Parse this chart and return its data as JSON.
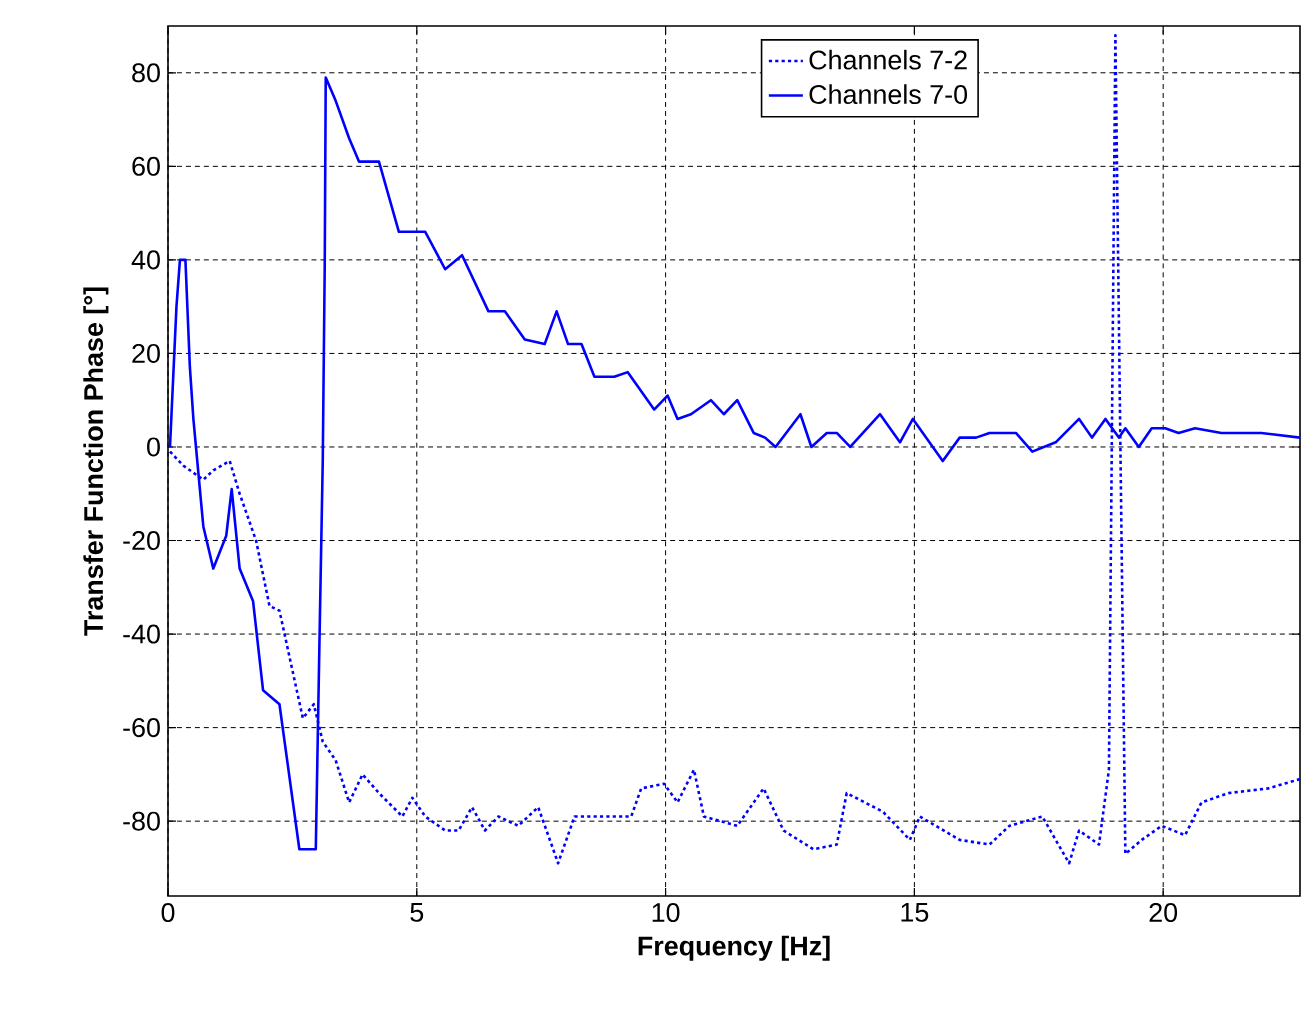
{
  "chart_data": {
    "type": "line",
    "xlabel": "Frequency [Hz]",
    "ylabel": "Transfer Function Phase [°]",
    "xlim": [
      0,
      22.75
    ],
    "ylim": [
      -96,
      90
    ],
    "xticks": [
      0,
      5,
      10,
      15,
      20
    ],
    "yticks": [
      -80,
      -60,
      -40,
      -20,
      0,
      20,
      40,
      60,
      80
    ],
    "grid": true,
    "legend": "top",
    "series": [
      {
        "name": "Channels 7-2",
        "color": "#0000ff",
        "line_style": "dotted",
        "x": [
          0.04,
          0.31,
          0.71,
          0.91,
          1.24,
          1.44,
          1.77,
          2.04,
          2.24,
          2.71,
          2.93,
          3.11,
          3.37,
          3.64,
          3.91,
          4.24,
          4.71,
          4.91,
          5.17,
          5.57,
          5.84,
          6.11,
          6.37,
          6.64,
          7.04,
          7.44,
          7.84,
          8.17,
          8.57,
          9.31,
          9.51,
          9.97,
          10.24,
          10.57,
          10.77,
          11.44,
          11.97,
          12.37,
          12.97,
          13.44,
          13.64,
          14.37,
          14.91,
          15.11,
          15.91,
          16.51,
          16.91,
          17.57,
          18.11,
          18.31,
          18.71,
          18.91,
          19.04,
          19.24,
          19.57,
          19.97,
          20.44,
          20.77,
          21.31,
          22.11,
          22.75
        ],
        "values": [
          -1,
          -4,
          -7,
          -5,
          -3,
          -10,
          -20,
          -34,
          -35,
          -58,
          -55,
          -63,
          -67,
          -76,
          -70,
          -74,
          -79,
          -75,
          -79,
          -82,
          -82,
          -77,
          -82,
          -79,
          -81,
          -77,
          -89,
          -79,
          -79,
          -79,
          -73,
          -72,
          -76,
          -69,
          -79,
          -81,
          -73,
          -82,
          -86,
          -85,
          -74,
          -78,
          -84,
          -79,
          -84,
          -85,
          -81,
          -79,
          -89,
          -82,
          -85,
          -69,
          88,
          -87,
          -84,
          -81,
          -83,
          -76,
          -74,
          -73,
          -71
        ]
      },
      {
        "name": "Channels 7-0",
        "color": "#0000ff",
        "line_style": "solid",
        "x": [
          0.04,
          0.17,
          0.24,
          0.35,
          0.44,
          0.51,
          0.71,
          0.91,
          1.17,
          1.28,
          1.44,
          1.71,
          1.91,
          2.24,
          2.64,
          2.97,
          3.04,
          3.11,
          3.15,
          3.17,
          3.37,
          3.64,
          3.84,
          4.24,
          4.64,
          5.17,
          5.57,
          5.91,
          6.44,
          6.77,
          7.17,
          7.57,
          7.81,
          8.04,
          8.31,
          8.57,
          8.97,
          9.24,
          9.77,
          10.04,
          10.24,
          10.51,
          10.91,
          11.17,
          11.44,
          11.77,
          12.0,
          12.21,
          12.71,
          12.93,
          13.24,
          13.44,
          13.71,
          14.31,
          14.71,
          14.97,
          15.57,
          15.91,
          16.24,
          16.51,
          17.04,
          17.37,
          17.84,
          18.31,
          18.57,
          18.84,
          19.11,
          19.24,
          19.51,
          19.77,
          20.04,
          20.31,
          20.64,
          21.17,
          21.97,
          22.75
        ],
        "values": [
          0,
          30,
          40,
          40,
          17,
          6,
          -17,
          -26,
          -19,
          -9,
          -26,
          -33,
          -52,
          -55,
          -86,
          -86,
          -44,
          -3,
          39,
          79,
          74,
          66,
          61,
          61,
          46,
          46,
          38,
          41,
          29,
          29,
          23,
          22,
          29,
          22,
          22,
          15,
          15,
          16,
          8,
          11,
          6,
          7,
          10,
          7,
          10,
          3,
          2,
          0,
          7,
          0,
          3,
          3,
          0,
          7,
          1,
          6,
          -3,
          2,
          2,
          3,
          3,
          -1,
          1,
          6,
          2,
          6,
          2,
          4,
          0,
          4,
          4,
          3,
          4,
          3,
          3,
          2
        ]
      }
    ]
  }
}
